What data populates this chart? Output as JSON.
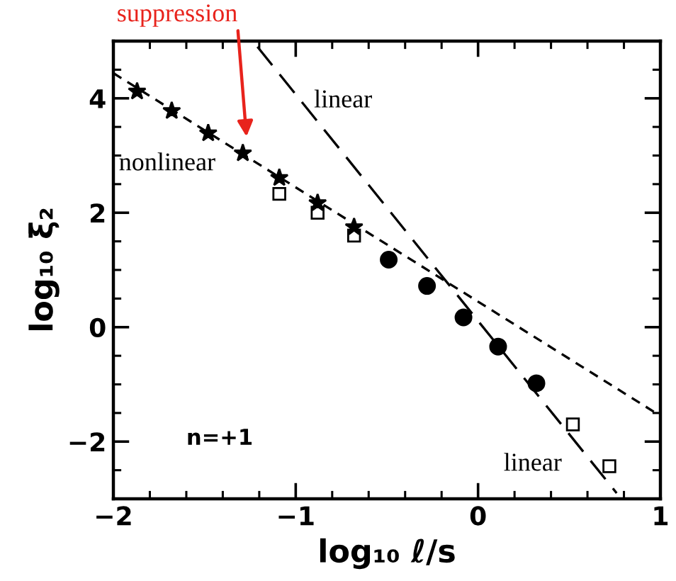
{
  "chart_data": {
    "type": "scatter",
    "xlabel": "log₁₀ ℓ/s",
    "ylabel": "log₁₀ ξ̄₂",
    "xlim": [
      -2,
      1
    ],
    "ylim": [
      -3,
      5
    ],
    "xticks": [
      {
        "value": -2,
        "label": "−2"
      },
      {
        "value": -1,
        "label": "−1"
      },
      0,
      1
    ],
    "yticks": [
      {
        "value": -2,
        "label": "−2"
      },
      0,
      2,
      4
    ],
    "grid": false,
    "legend": false,
    "series": [
      {
        "marker": "star",
        "color": "#000000",
        "x": [
          -1.87,
          -1.68,
          -1.48,
          -1.29,
          -1.09,
          -0.88,
          -0.68
        ],
        "values": [
          4.12,
          3.78,
          3.39,
          3.04,
          2.61,
          2.17,
          1.75
        ]
      },
      {
        "marker": "square",
        "color": "#000000",
        "x": [
          -1.09,
          -0.88,
          -0.68,
          0.52,
          0.72
        ],
        "values": [
          2.33,
          2.0,
          1.6,
          -1.7,
          -2.43
        ]
      },
      {
        "marker": "circle",
        "color": "#000000",
        "x": [
          -0.49,
          -0.28,
          -0.08,
          0.11,
          0.32
        ],
        "values": [
          1.18,
          0.72,
          0.17,
          -0.34,
          -0.98
        ]
      },
      {
        "type": "line",
        "line_style": "dashed",
        "color": "#000000",
        "x": [
          -2,
          1
        ],
        "values": [
          4.44,
          -1.55
        ]
      },
      {
        "type": "line",
        "line_style": "longdash",
        "color": "#000000",
        "x": [
          -1.21,
          0.76
        ],
        "values": [
          4.9,
          -2.9
        ]
      }
    ],
    "annotations": [
      "suppression",
      "linear",
      "nonlinear",
      "linear",
      "n=+1"
    ]
  }
}
